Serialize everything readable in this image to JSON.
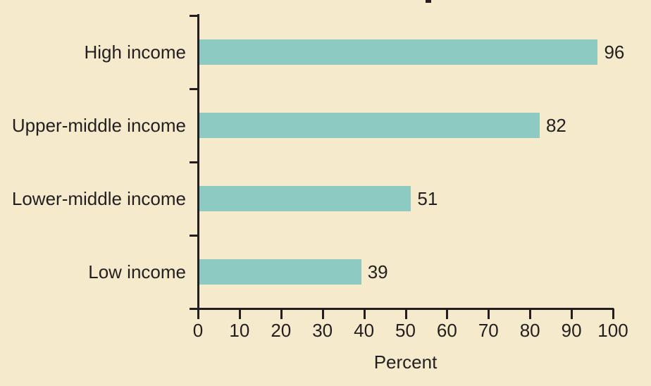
{
  "page": {
    "background_color": "#F5EACC",
    "text_color": "#231F20",
    "axis_color": "#231F20"
  },
  "chart_data": {
    "type": "bar",
    "orientation": "horizontal",
    "title": "",
    "categories": [
      "High income",
      "Upper-middle income",
      "Lower-middle income",
      "Low income"
    ],
    "values": [
      96,
      82,
      51,
      39
    ],
    "value_labels": [
      "96",
      "82",
      "51",
      "39"
    ],
    "xlabel": "Percent",
    "ylabel": "",
    "xlim": [
      0,
      100
    ],
    "x_ticks": [
      0,
      10,
      20,
      30,
      40,
      50,
      60,
      70,
      80,
      90,
      100
    ],
    "grid": false,
    "legend": "none",
    "bar_color": "#8DCAC2",
    "value_label_position": "right-of-bar"
  }
}
